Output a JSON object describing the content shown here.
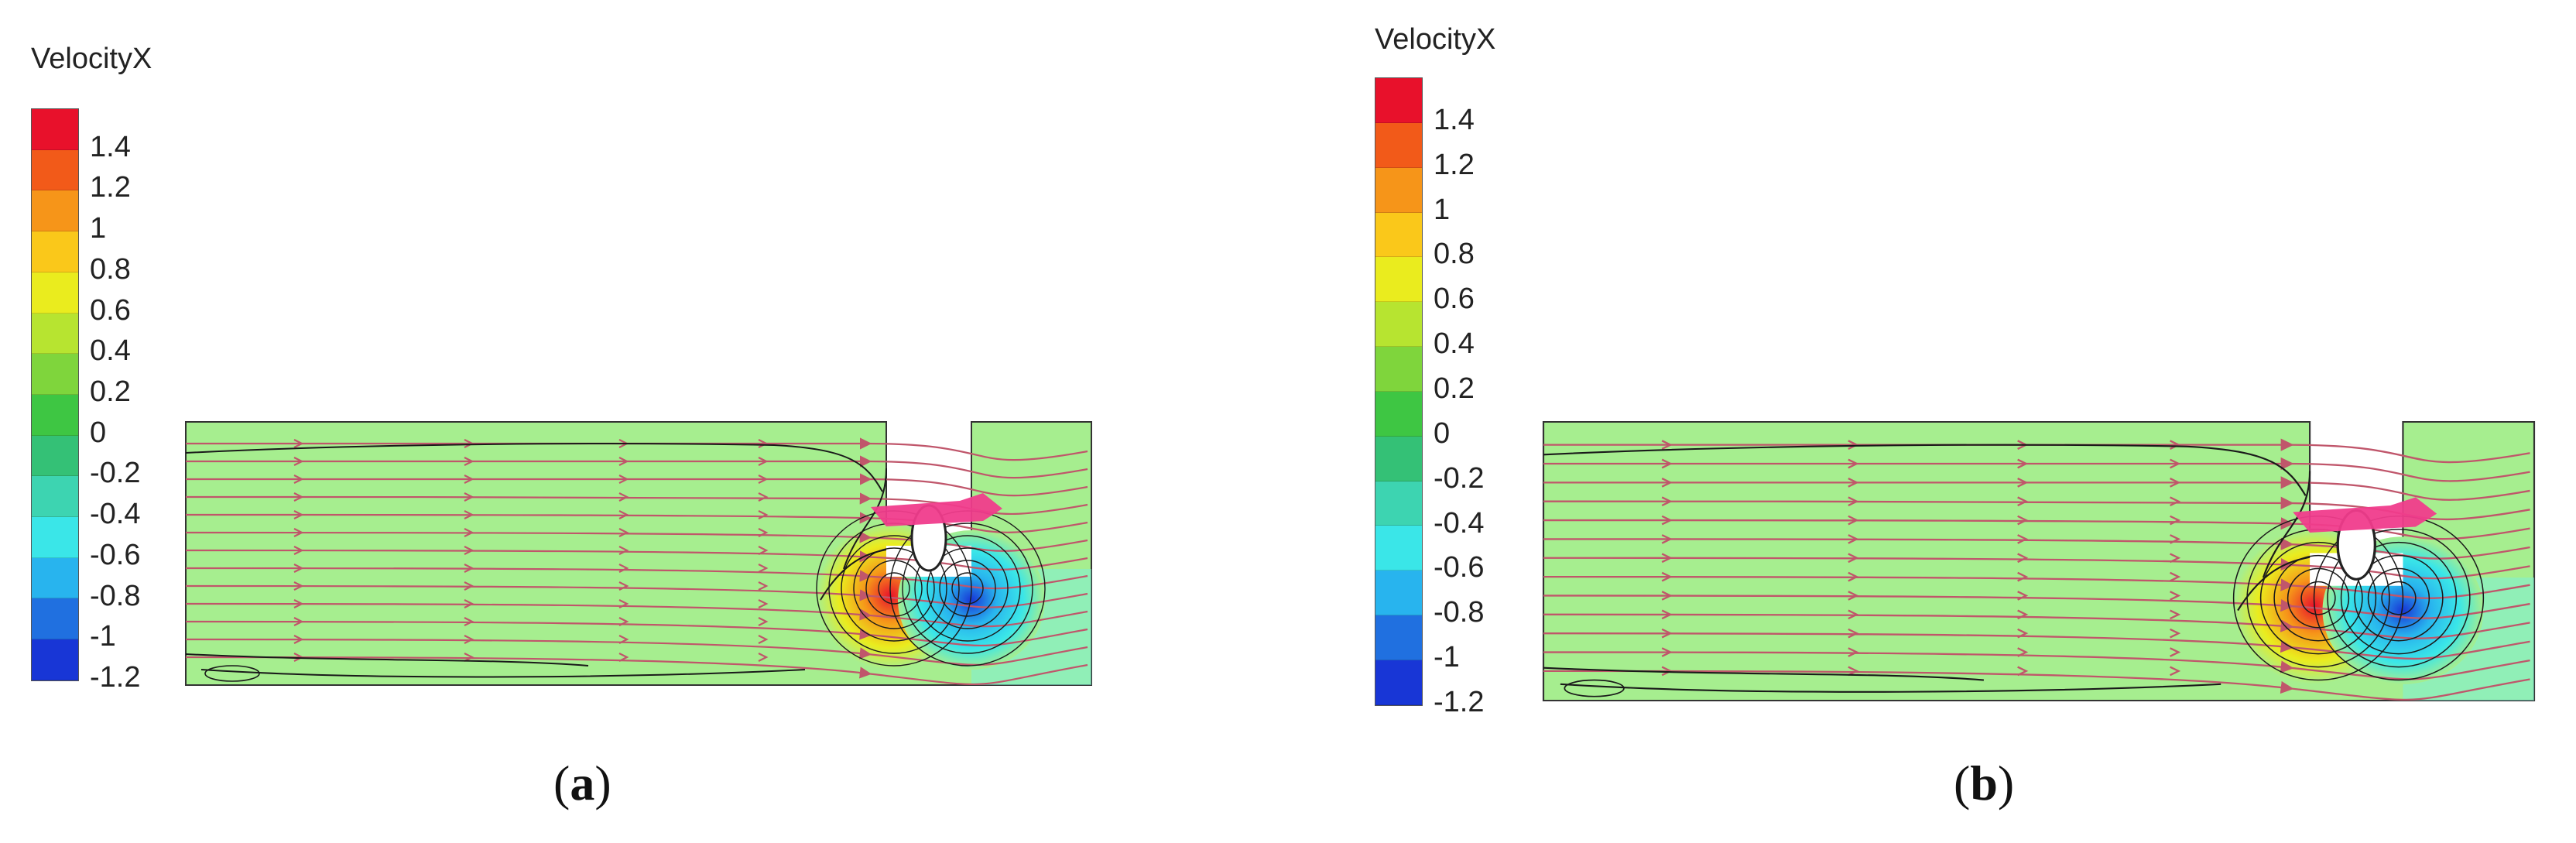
{
  "legend": {
    "title": "VelocityX",
    "levels": [
      "1.4",
      "1.2",
      "1",
      "0.8",
      "0.6",
      "0.4",
      "0.2",
      "0",
      "-0.2",
      "-0.4",
      "-0.6",
      "-0.8",
      "-1",
      "-1.2"
    ],
    "colors": [
      "#e8112b",
      "#f25a19",
      "#f69519",
      "#fac81a",
      "#eaec1e",
      "#b7e430",
      "#7fd53c",
      "#3ec643",
      "#34c176",
      "#3dd4b1",
      "#3ae6e8",
      "#28b4ee",
      "#2070e0",
      "#1836d6"
    ]
  },
  "panels": [
    {
      "id": "a",
      "caption_open": "(",
      "caption_letter": "a",
      "caption_close": ")"
    },
    {
      "id": "b",
      "caption_open": "(",
      "caption_letter": "b",
      "caption_close": ")"
    }
  ],
  "colors": {
    "field": "#a6ee8f",
    "streamline": "#c0566b",
    "contour": "#1a1a1a",
    "ship": "#f03c8c"
  }
}
